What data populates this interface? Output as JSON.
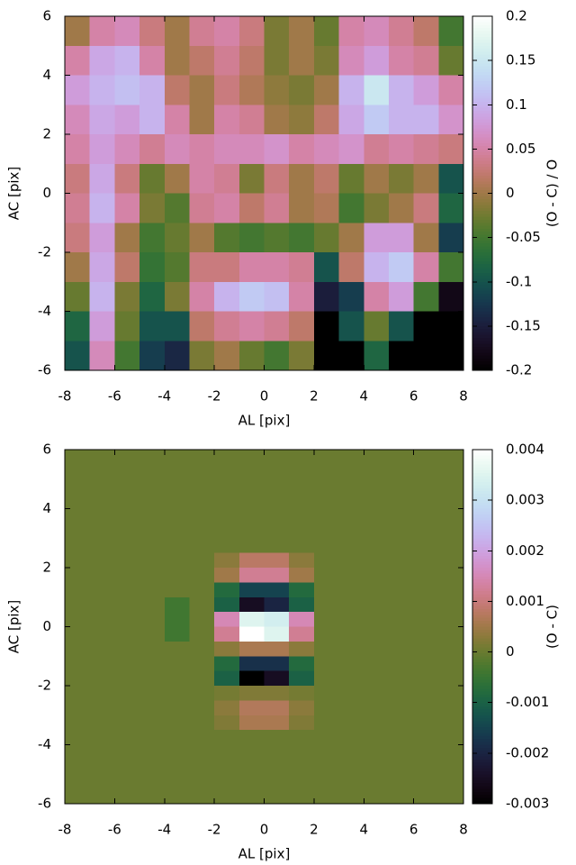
{
  "chart_data": [
    {
      "type": "heatmap",
      "xlabel": "AL [pix]",
      "ylabel": "AC [pix]",
      "colorbar_label": "(O - C) / O",
      "colormap": "cubehelix",
      "xlim": [
        -8,
        8
      ],
      "ylim": [
        -6,
        6
      ],
      "xticks": [
        -8,
        -6,
        -4,
        -2,
        0,
        2,
        4,
        6,
        8
      ],
      "yticks": [
        -6,
        -4,
        -2,
        0,
        2,
        4,
        6
      ],
      "clim": [
        -0.2,
        0.2
      ],
      "cticks": [
        -0.2,
        -0.15,
        -0.1,
        -0.05,
        0,
        0.05,
        0.1,
        0.15,
        0.2
      ],
      "z": [
        [
          0.0,
          0.05,
          0.06,
          0.03,
          0.0,
          0.04,
          0.05,
          0.03,
          -0.02,
          0.0,
          -0.03,
          0.05,
          0.06,
          0.04,
          0.02,
          -0.05
        ],
        [
          0.05,
          0.09,
          0.1,
          0.05,
          0.0,
          0.02,
          0.04,
          0.02,
          -0.02,
          0.0,
          -0.02,
          0.06,
          0.08,
          0.05,
          0.04,
          -0.03
        ],
        [
          0.08,
          0.1,
          0.11,
          0.1,
          0.02,
          0.0,
          0.03,
          0.01,
          -0.01,
          -0.02,
          0.0,
          0.1,
          0.15,
          0.1,
          0.08,
          0.05
        ],
        [
          0.06,
          0.09,
          0.08,
          0.1,
          0.05,
          0.0,
          0.05,
          0.04,
          0.0,
          -0.01,
          0.02,
          0.09,
          0.12,
          0.1,
          0.1,
          0.07
        ],
        [
          0.05,
          0.08,
          0.06,
          0.04,
          0.06,
          0.05,
          0.06,
          0.06,
          0.07,
          0.05,
          0.06,
          0.07,
          0.04,
          0.05,
          0.04,
          0.03
        ],
        [
          0.03,
          0.09,
          0.03,
          -0.03,
          0.0,
          0.05,
          0.04,
          -0.02,
          0.03,
          0.0,
          0.02,
          -0.03,
          0.0,
          -0.02,
          0.0,
          -0.1
        ],
        [
          0.04,
          0.1,
          0.05,
          -0.02,
          -0.04,
          0.04,
          0.05,
          0.02,
          0.04,
          0.0,
          0.01,
          -0.05,
          -0.02,
          0.0,
          0.03,
          -0.08
        ],
        [
          0.03,
          0.08,
          0.0,
          -0.05,
          -0.03,
          0.0,
          -0.04,
          -0.05,
          -0.04,
          -0.05,
          -0.03,
          0.0,
          0.08,
          0.08,
          0.0,
          -0.12
        ],
        [
          0.0,
          0.09,
          0.02,
          -0.06,
          -0.04,
          0.03,
          0.03,
          0.05,
          0.05,
          0.04,
          -0.1,
          0.02,
          0.1,
          0.12,
          0.05,
          -0.05
        ],
        [
          -0.03,
          0.1,
          -0.02,
          -0.08,
          -0.02,
          0.05,
          0.1,
          0.12,
          0.11,
          0.05,
          -0.15,
          -0.12,
          0.05,
          0.08,
          -0.05,
          -0.18
        ],
        [
          -0.08,
          0.08,
          -0.03,
          -0.1,
          -0.1,
          0.02,
          0.04,
          0.05,
          0.04,
          0.02,
          -0.2,
          -0.1,
          -0.03,
          -0.1,
          -0.2,
          -0.2
        ],
        [
          -0.1,
          0.06,
          -0.05,
          -0.12,
          -0.14,
          -0.02,
          0.0,
          -0.03,
          -0.05,
          -0.02,
          -0.2,
          -0.2,
          -0.08,
          -0.2,
          -0.2,
          -0.2
        ]
      ]
    },
    {
      "type": "heatmap",
      "xlabel": "AL [pix]",
      "ylabel": "AC [pix]",
      "colorbar_label": "(O - C)",
      "colormap": "cubehelix",
      "xlim": [
        -8,
        8
      ],
      "ylim": [
        -6,
        6
      ],
      "xticks": [
        -8,
        -6,
        -4,
        -2,
        0,
        2,
        4,
        6,
        8
      ],
      "yticks": [
        -6,
        -4,
        -2,
        0,
        2,
        4,
        6
      ],
      "clim": [
        -0.003,
        0.004
      ],
      "cticks": [
        -0.003,
        -0.002,
        -0.001,
        0,
        0.001,
        0.002,
        0.003,
        0.004
      ],
      "z": [
        [
          0,
          0,
          0,
          0,
          0,
          0,
          0,
          0,
          0,
          0,
          0,
          0,
          0,
          0,
          0,
          0
        ],
        [
          0,
          0,
          0,
          0,
          0,
          0,
          0,
          0,
          0,
          0,
          0,
          0,
          0,
          0,
          0,
          0
        ],
        [
          0,
          0,
          0,
          0,
          0,
          0,
          0,
          0,
          0,
          0,
          0,
          0,
          0,
          0,
          0,
          0
        ],
        [
          0,
          0,
          0,
          0,
          0,
          0,
          0,
          0,
          0,
          0,
          0,
          0,
          0,
          0,
          0,
          0
        ],
        [
          0,
          0,
          0,
          0,
          0,
          0,
          0,
          0,
          0,
          0,
          0,
          0,
          0,
          0,
          0,
          0
        ],
        [
          0,
          0,
          0,
          0,
          0,
          0,
          0,
          0,
          0,
          0,
          0,
          0,
          0,
          0,
          0,
          0
        ],
        [
          0,
          0,
          0,
          0,
          0,
          0,
          0,
          0,
          0,
          0,
          0,
          0,
          0,
          0,
          0,
          0
        ],
        [
          0,
          0,
          0,
          0,
          0,
          0,
          0.0003,
          0.0008,
          0.0008,
          0.0003,
          0,
          0,
          0,
          0,
          0,
          0
        ],
        [
          0,
          0,
          0,
          0,
          0,
          0,
          0.0005,
          0.0012,
          0.0012,
          0.0005,
          0,
          0,
          0,
          0,
          0,
          0
        ],
        [
          0,
          0,
          0,
          0,
          0,
          0,
          -0.0008,
          -0.0015,
          -0.0015,
          -0.0008,
          0,
          0,
          0,
          0,
          0,
          0
        ],
        [
          0,
          0,
          0,
          0,
          -0.0004,
          0,
          -0.001,
          -0.0025,
          -0.002,
          -0.001,
          0,
          0,
          0,
          0,
          0,
          0
        ],
        [
          0,
          0,
          0,
          0,
          -0.0004,
          0,
          0.0015,
          0.0035,
          0.0033,
          0.0015,
          0,
          0,
          0,
          0,
          0,
          0
        ],
        [
          0,
          0,
          0,
          0,
          -0.0004,
          0,
          0.0012,
          0.004,
          0.0035,
          0.0012,
          0,
          0,
          0,
          0,
          0,
          0
        ],
        [
          0,
          0,
          0,
          0,
          0,
          0,
          0.0003,
          0.0006,
          0.0006,
          0.0003,
          0,
          0,
          0,
          0,
          0,
          0
        ],
        [
          0,
          0,
          0,
          0,
          0,
          0,
          -0.0008,
          -0.0018,
          -0.0018,
          -0.0008,
          0,
          0,
          0,
          0,
          0,
          0
        ],
        [
          0,
          0,
          0,
          0,
          0,
          0,
          -0.001,
          -0.003,
          -0.0025,
          -0.001,
          0,
          0,
          0,
          0,
          0,
          0
        ],
        [
          0,
          0,
          0,
          0,
          0,
          0,
          0.0001,
          0.0002,
          0.0002,
          0.0001,
          0,
          0,
          0,
          0,
          0,
          0
        ],
        [
          0,
          0,
          0,
          0,
          0,
          0,
          0.0003,
          0.0007,
          0.0007,
          0.0003,
          0,
          0,
          0,
          0,
          0,
          0
        ],
        [
          0,
          0,
          0,
          0,
          0,
          0,
          0.0002,
          0.0006,
          0.0006,
          0.0002,
          0,
          0,
          0,
          0,
          0,
          0
        ],
        [
          0,
          0,
          0,
          0,
          0,
          0,
          0,
          0,
          0,
          0,
          0,
          0,
          0,
          0,
          0,
          0
        ],
        [
          0,
          0,
          0,
          0,
          0,
          0,
          0,
          0,
          0,
          0,
          0,
          0,
          0,
          0,
          0,
          0
        ],
        [
          0,
          0,
          0,
          0,
          0,
          0,
          0,
          0,
          0,
          0,
          0,
          0,
          0,
          0,
          0,
          0
        ],
        [
          0,
          0,
          0,
          0,
          0,
          0,
          0,
          0,
          0,
          0,
          0,
          0,
          0,
          0,
          0,
          0
        ],
        [
          0,
          0,
          0,
          0,
          0,
          0,
          0,
          0,
          0,
          0,
          0,
          0,
          0,
          0,
          0,
          0
        ]
      ]
    }
  ]
}
